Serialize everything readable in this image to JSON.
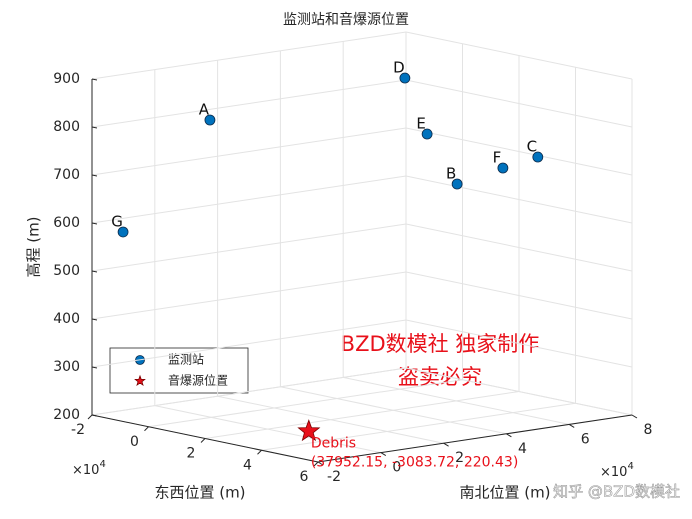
{
  "chart_data": {
    "type": "scatter3d",
    "title": "监测站和音爆源位置",
    "xlabel": "东西位置 (m)",
    "ylabel": "南北位置 (m)",
    "zlabel": "高程 (m)",
    "x_multiplier": {
      "base": "×10",
      "power": "4"
    },
    "y_multiplier": {
      "base": "×10",
      "power": "4"
    },
    "xlim": [
      -2,
      6
    ],
    "xticks": [
      -2,
      0,
      2,
      4,
      6
    ],
    "ylim": [
      -2,
      8
    ],
    "yticks": [
      -2,
      0,
      2,
      4,
      6,
      8
    ],
    "zlim": [
      200,
      900
    ],
    "zticks": [
      200,
      300,
      400,
      500,
      600,
      700,
      800,
      900
    ],
    "grid": true,
    "legend": "southwest",
    "series": [
      {
        "name": "监测站",
        "color": "#0072bd",
        "marker": "circle",
        "labels": [
          "A",
          "B",
          "C",
          "D",
          "E",
          "F",
          "G"
        ],
        "x": [
          1.43,
          4.3,
          5.2,
          2.54,
          3.66,
          4.82,
          -1.6
        ],
        "y": [
          -1.33,
          3.96,
          5.72,
          3.88,
          3.58,
          4.95,
          -1.37
        ],
        "values": [
          850,
          700,
          750,
          900,
          800,
          730,
          580
        ]
      },
      {
        "name": "音爆源位置",
        "color": "#e8101a",
        "marker": "star",
        "labels": [
          "Debris"
        ],
        "x": [
          3.795215
        ],
        "y": [
          -0.308372
        ],
        "values": [
          220.43
        ],
        "value_labels": [
          "(37952.15, -3083.72, 220.43)"
        ]
      }
    ]
  },
  "watermark": {
    "line1": "BZD数模社 独家制作",
    "line2": "盗卖必究",
    "credit": "知乎 @BZD数模社"
  }
}
